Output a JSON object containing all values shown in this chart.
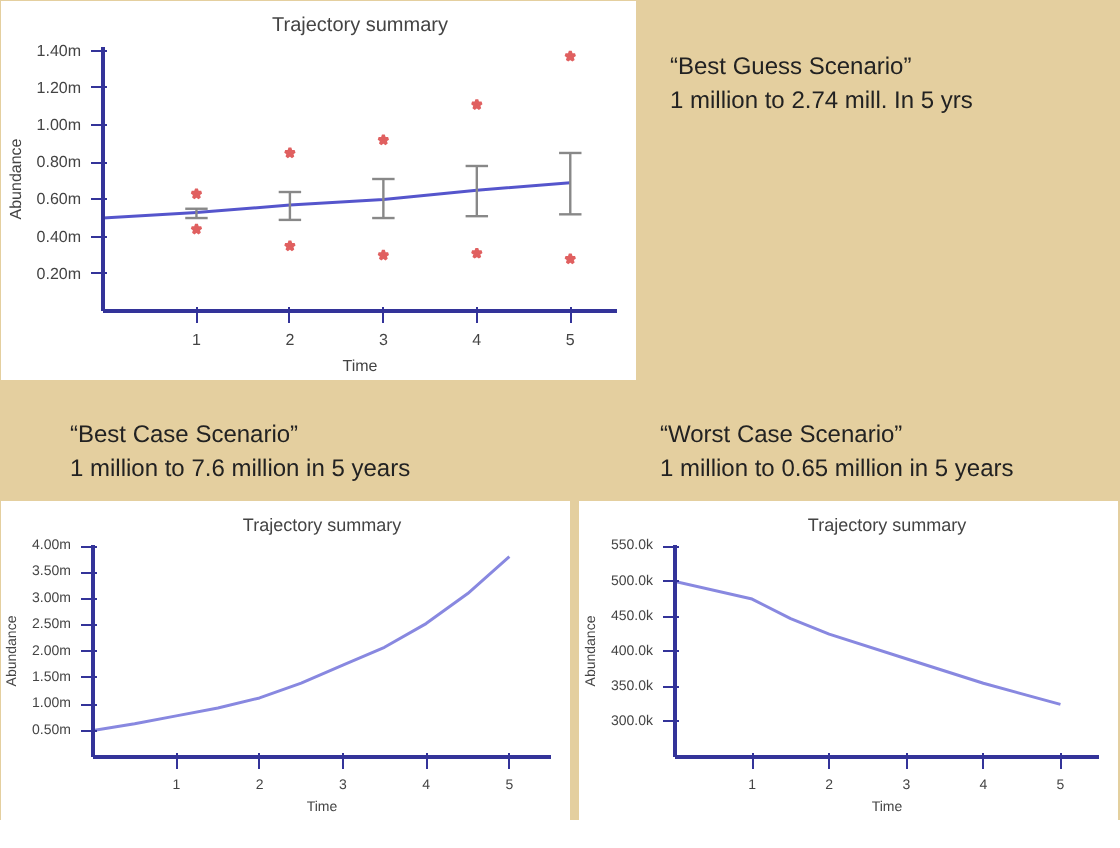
{
  "chart_data": [
    {
      "type": "line",
      "title": "Trajectory summary",
      "xlabel": "Time",
      "ylabel": "Abundance",
      "annotations": [
        "“Best Guess Scenario”\n1 million to 2.74 mill. In 5 yrs"
      ],
      "xlim": [
        0,
        5.5
      ],
      "xticks": [
        1,
        2,
        3,
        4,
        5
      ],
      "ylim": [
        0,
        1.42
      ],
      "yticks": [
        {
          "value": 0.2,
          "label": "0.20m"
        },
        {
          "value": 0.4,
          "label": "0.40m"
        },
        {
          "value": 0.6,
          "label": "0.60m"
        },
        {
          "value": 0.8,
          "label": "0.80m"
        },
        {
          "value": 1.0,
          "label": "1.00m"
        },
        {
          "value": 1.2,
          "label": "1.20m"
        },
        {
          "value": 1.4,
          "label": "1.40m"
        }
      ],
      "grid": false,
      "series": [
        {
          "color": "#5555cc",
          "x": [
            0,
            1,
            2,
            3,
            4,
            5
          ],
          "values": [
            0.5,
            0.53,
            0.57,
            0.6,
            0.65,
            0.69
          ],
          "errors": [
            null,
            [
              0.5,
              0.55
            ],
            [
              0.49,
              0.64
            ],
            [
              0.5,
              0.71
            ],
            [
              0.51,
              0.78
            ],
            [
              0.52,
              0.85
            ]
          ]
        },
        {
          "type": "scatter",
          "marker": "star",
          "color": "#e06060",
          "x": [
            1,
            1,
            2,
            2,
            3,
            3,
            4,
            4,
            5,
            5
          ],
          "values": [
            0.63,
            0.44,
            0.85,
            0.35,
            0.92,
            0.3,
            1.11,
            0.31,
            1.37,
            0.28
          ]
        }
      ]
    },
    {
      "type": "line",
      "title": "Trajectory summary",
      "xlabel": "Time",
      "ylabel": "Abundance",
      "annotations": [
        "“Best Case Scenario”\n1 million to 7.6 million in 5 years"
      ],
      "xlim": [
        0,
        5.5
      ],
      "xticks": [
        1,
        2,
        3,
        4,
        5
      ],
      "ylim": [
        0,
        4.02
      ],
      "yticks": [
        {
          "value": 0.5,
          "label": "0.50m"
        },
        {
          "value": 1.0,
          "label": "1.00m"
        },
        {
          "value": 1.5,
          "label": "1.50m"
        },
        {
          "value": 2.0,
          "label": "2.00m"
        },
        {
          "value": 2.5,
          "label": "2.50m"
        },
        {
          "value": 3.0,
          "label": "3.00m"
        },
        {
          "value": 3.5,
          "label": "3.50m"
        },
        {
          "value": 4.0,
          "label": "4.00m"
        }
      ],
      "grid": false,
      "series": [
        {
          "color": "#8888e0",
          "x": [
            0,
            0.5,
            1,
            1.5,
            2,
            2.5,
            3,
            3.5,
            4,
            4.5,
            5
          ],
          "values": [
            0.5,
            0.63,
            0.78,
            0.93,
            1.12,
            1.4,
            1.74,
            2.08,
            2.53,
            3.1,
            3.8
          ]
        }
      ]
    },
    {
      "type": "line",
      "title": "Trajectory summary",
      "xlabel": "Time",
      "ylabel": "Abundance",
      "annotations": [
        "“Worst Case Scenario”\n1 million to 0.65 million in 5 years"
      ],
      "xlim": [
        0,
        5.5
      ],
      "xticks": [
        1,
        2,
        3,
        4,
        5
      ],
      "ylim": [
        250,
        552
      ],
      "yticks": [
        {
          "value": 300,
          "label": "300.0k"
        },
        {
          "value": 350,
          "label": "350.0k"
        },
        {
          "value": 400,
          "label": "400.0k"
        },
        {
          "value": 450,
          "label": "450.0k"
        },
        {
          "value": 500,
          "label": "500.0k"
        },
        {
          "value": 550,
          "label": "550.0k"
        }
      ],
      "grid": false,
      "series": [
        {
          "color": "#8888e0",
          "x": [
            0,
            1,
            1.5,
            2,
            3,
            4,
            5
          ],
          "values": [
            500,
            475,
            447,
            425,
            390,
            355,
            325
          ]
        }
      ]
    }
  ]
}
